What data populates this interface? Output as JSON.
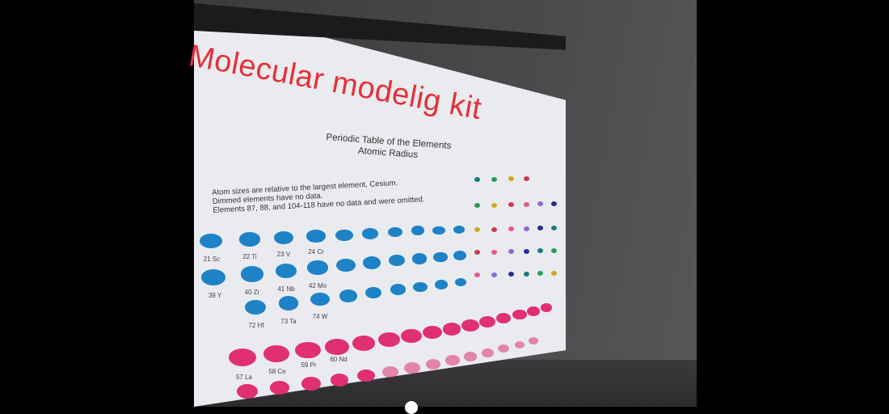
{
  "video": {
    "board_title": "Molecular modelig kit",
    "table_title": "Periodic Table of the Elements",
    "table_subtitle": "Atomic Radius",
    "notes": [
      "Atom sizes are relative to the largest element, Cesium.",
      "Dimmed elements have no data.",
      "Elements 87, 88, and 104-118 have no data and were omitted."
    ],
    "labels": {
      "sc": "21 Sc",
      "ti": "22 Ti",
      "v": "23 V",
      "cr": "24 Cr",
      "y": "39 Y",
      "zr": "40 Zr",
      "nb": "41 Nb",
      "mo": "42 Mo",
      "w": "74 W",
      "hf": "72 Hf",
      "ta": "73 Ta",
      "la": "57 La",
      "ce": "58 Ce",
      "pr": "59 Pr",
      "nd": "60 Nd"
    },
    "colors": {
      "transition": "#1e82c6",
      "f_block": "#e0306f",
      "title": "#e5303b",
      "sky": "#3a72b6"
    }
  }
}
